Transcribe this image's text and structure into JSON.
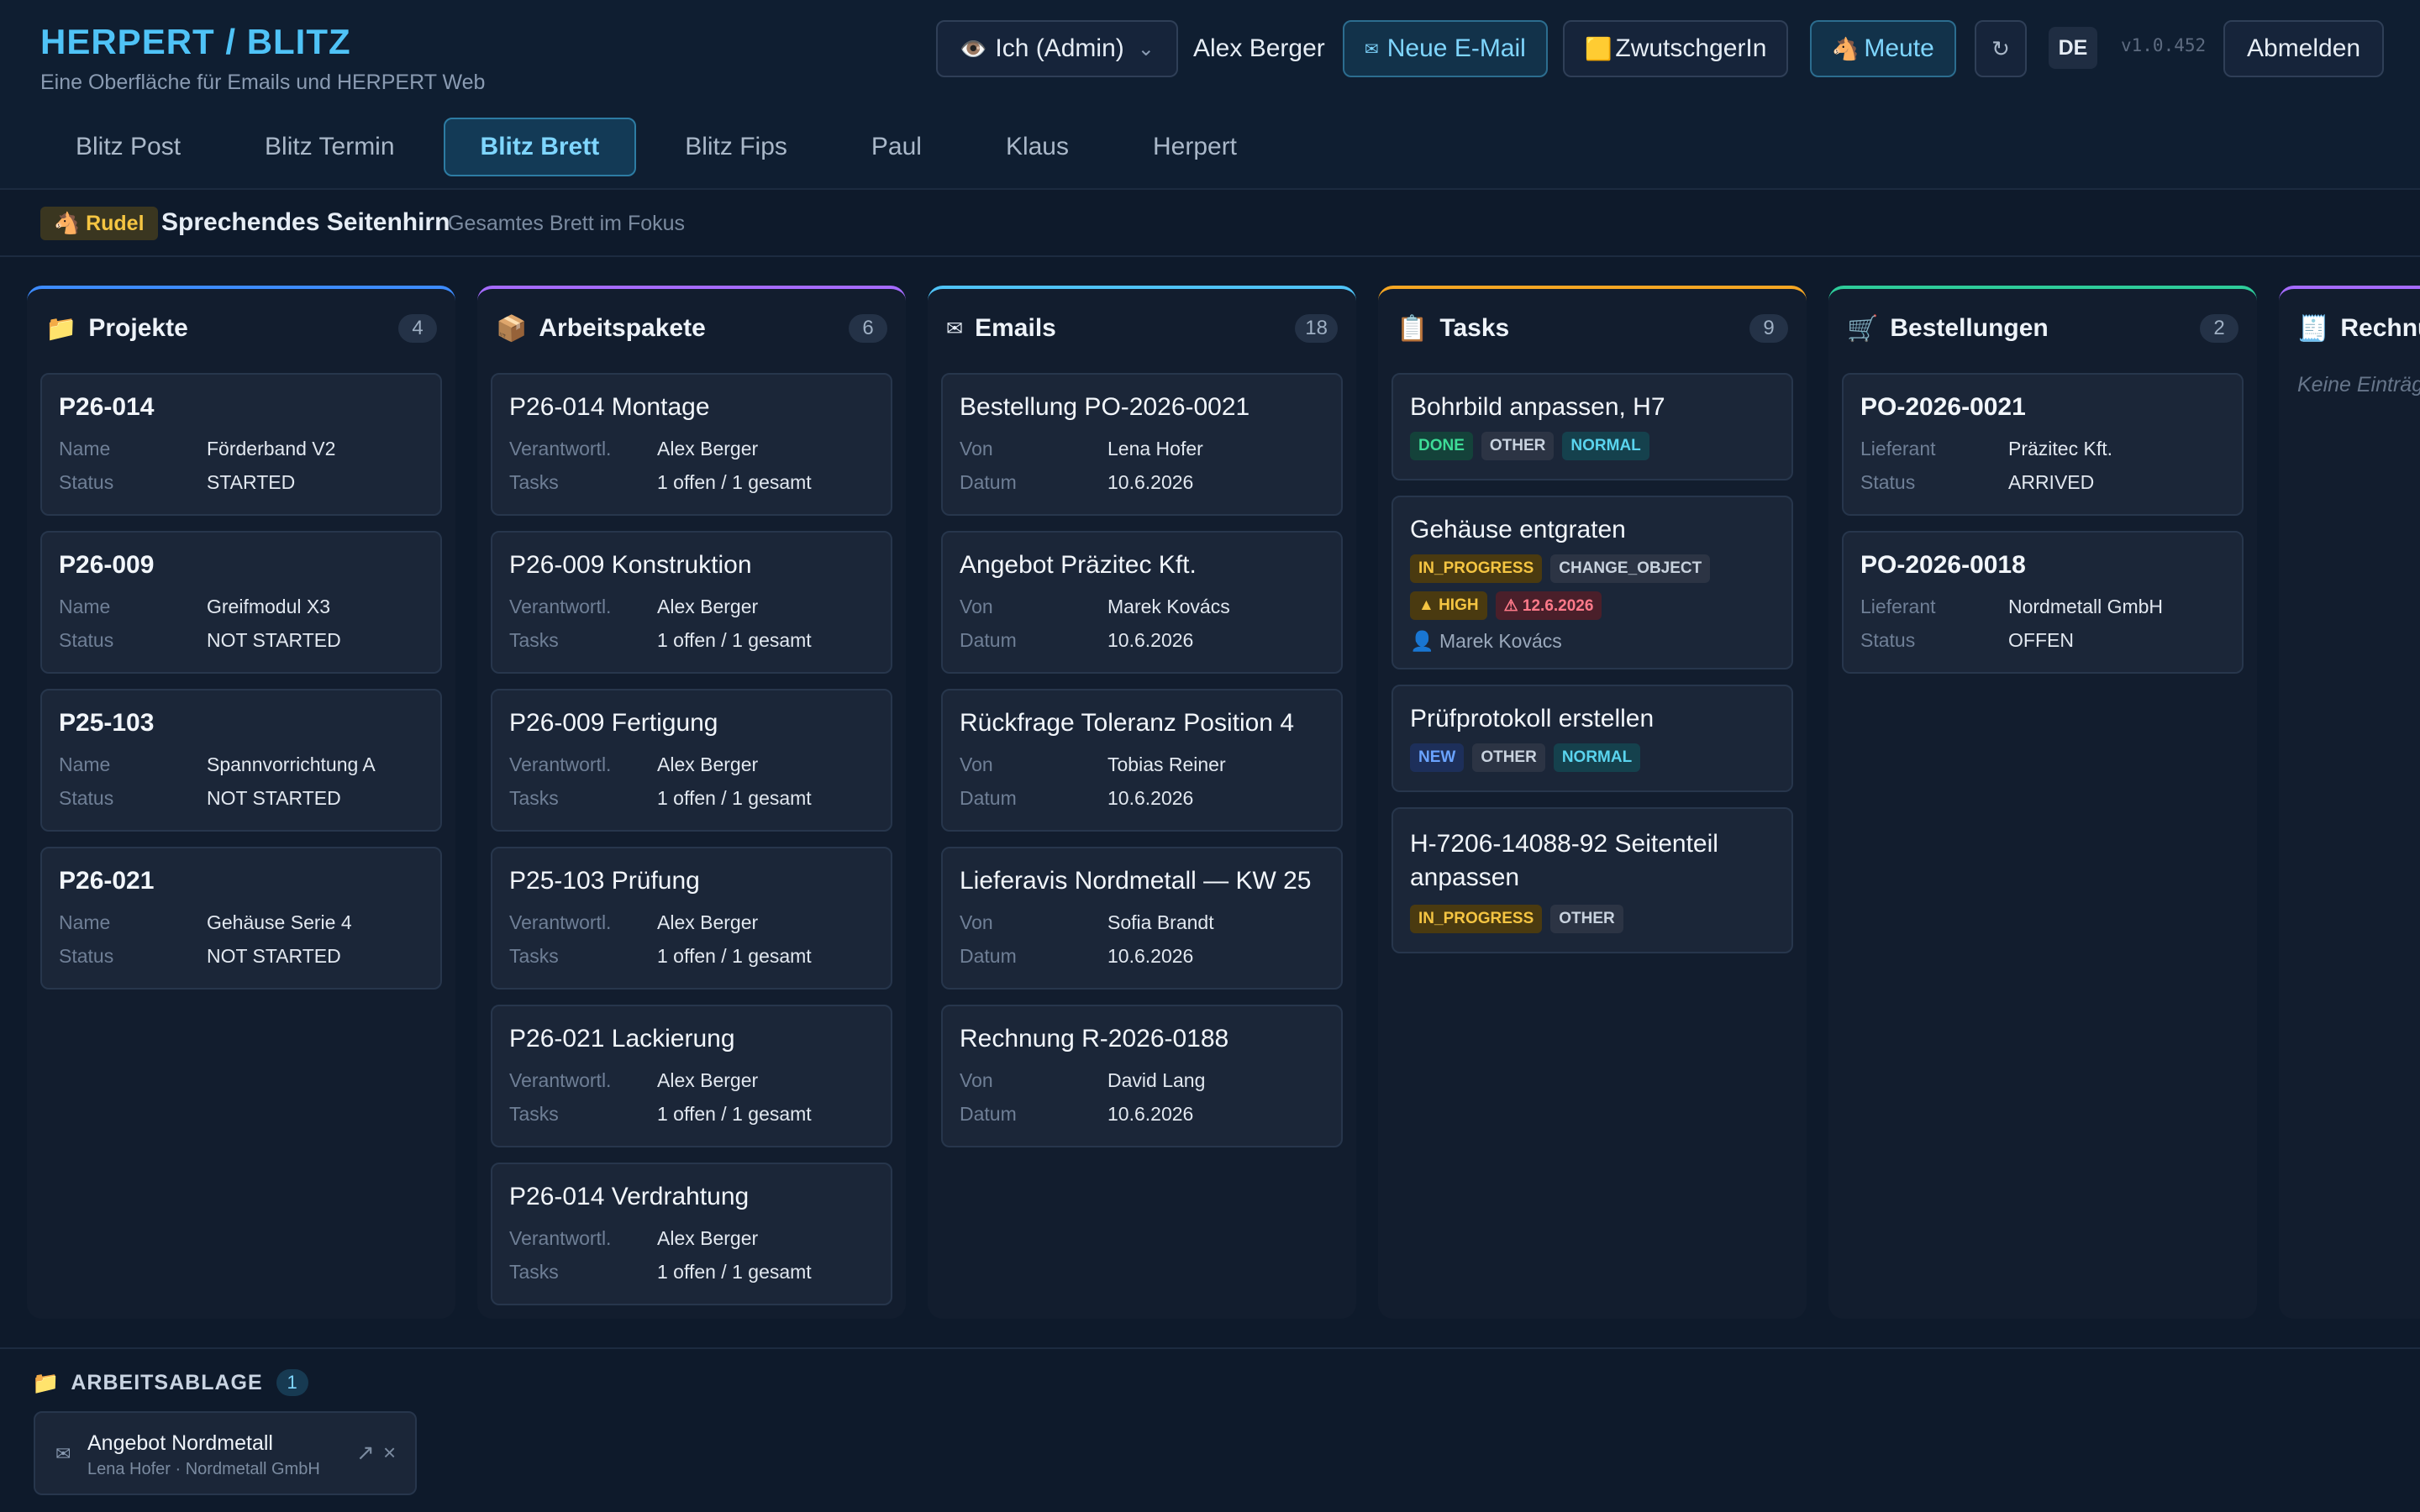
{
  "header": {
    "title": "HERPERT / BLITZ",
    "subtitle": "Eine Oberfläche für Emails und HERPERT Web",
    "role_select": {
      "icon": "eye-icon",
      "label": "Ich (Admin)",
      "chevron": "⌄"
    },
    "user_name": "Alex Berger",
    "new_email": {
      "icon": "✉",
      "label": "Neue E-Mail"
    },
    "zwutschgerin": {
      "icon": "🟨",
      "label": "ZwutschgerIn"
    },
    "meute": {
      "icon": "🐴",
      "label": "Meute"
    },
    "refresh_icon": "↻",
    "language": "DE",
    "version": "v1.0.452",
    "logout": "Abmelden"
  },
  "tabs": [
    {
      "label": "Blitz Post",
      "active": false
    },
    {
      "label": "Blitz Termin",
      "active": false
    },
    {
      "label": "Blitz Brett",
      "active": true
    },
    {
      "label": "Blitz Fips",
      "active": false
    },
    {
      "label": "Paul",
      "active": false
    },
    {
      "label": "Klaus",
      "active": false
    },
    {
      "label": "Herpert",
      "active": false
    }
  ],
  "rudel": {
    "badge": "🐴 Rudel",
    "title": "Sprechendes Seitenhirn",
    "subtitle": "Gesamtes Brett im Fokus"
  },
  "colors": {
    "projekte": "#3d8bfd",
    "arbeitspakete": "#a56bff",
    "emails": "#4fc3f7",
    "tasks": "#f5a623",
    "bestellungen": "#2ecc9a",
    "rechnungen": "#a56bff"
  },
  "columns": {
    "projekte": {
      "icon": "📁",
      "title": "Projekte",
      "count": "4",
      "cards": [
        {
          "title": "P26-014",
          "k1": "Name",
          "v1": "Förderband V2",
          "k2": "Status",
          "v2": "STARTED"
        },
        {
          "title": "P26-009",
          "k1": "Name",
          "v1": "Greifmodul X3",
          "k2": "Status",
          "v2": "NOT STARTED"
        },
        {
          "title": "P25-103",
          "k1": "Name",
          "v1": "Spannvorrichtung A",
          "k2": "Status",
          "v2": "NOT STARTED"
        },
        {
          "title": "P26-021",
          "k1": "Name",
          "v1": "Gehäuse Serie 4",
          "k2": "Status",
          "v2": "NOT STARTED"
        }
      ]
    },
    "arbeitspakete": {
      "icon": "📦",
      "title": "Arbeitspakete",
      "count": "6",
      "cards": [
        {
          "title": "P26-014 Montage",
          "k1": "Verantwortl.",
          "v1": "Alex Berger",
          "k2": "Tasks",
          "v2": "1 offen / 1 gesamt"
        },
        {
          "title": "P26-009 Konstruktion",
          "k1": "Verantwortl.",
          "v1": "Alex Berger",
          "k2": "Tasks",
          "v2": "1 offen / 1 gesamt"
        },
        {
          "title": "P26-009 Fertigung",
          "k1": "Verantwortl.",
          "v1": "Alex Berger",
          "k2": "Tasks",
          "v2": "1 offen / 1 gesamt"
        },
        {
          "title": "P25-103 Prüfung",
          "k1": "Verantwortl.",
          "v1": "Alex Berger",
          "k2": "Tasks",
          "v2": "1 offen / 1 gesamt"
        },
        {
          "title": "P26-021 Lackierung",
          "k1": "Verantwortl.",
          "v1": "Alex Berger",
          "k2": "Tasks",
          "v2": "1 offen / 1 gesamt"
        },
        {
          "title": "P26-014 Verdrahtung",
          "k1": "Verantwortl.",
          "v1": "Alex Berger",
          "k2": "Tasks",
          "v2": "1 offen / 1 gesamt"
        }
      ]
    },
    "emails": {
      "icon": "✉",
      "title": "Emails",
      "count": "18",
      "cards": [
        {
          "title": "Bestellung PO-2026-0021",
          "k1": "Von",
          "v1": "Lena Hofer",
          "k2": "Datum",
          "v2": "10.6.2026"
        },
        {
          "title": "Angebot Präzitec Kft.",
          "k1": "Von",
          "v1": "Marek Kovács",
          "k2": "Datum",
          "v2": "10.6.2026"
        },
        {
          "title": "Rückfrage Toleranz Position 4",
          "k1": "Von",
          "v1": "Tobias Reiner",
          "k2": "Datum",
          "v2": "10.6.2026"
        },
        {
          "title": "Lieferavis Nordmetall — KW 25",
          "k1": "Von",
          "v1": "Sofia Brandt",
          "k2": "Datum",
          "v2": "10.6.2026"
        },
        {
          "title": "Rechnung R-2026-0188",
          "k1": "Von",
          "v1": "David Lang",
          "k2": "Datum",
          "v2": "10.6.2026"
        }
      ]
    },
    "tasks": {
      "icon": "📋",
      "title": "Tasks",
      "count": "9",
      "cards": [
        {
          "title": "Bohrbild anpassen, H7",
          "pills": [
            "DONE",
            "OTHER",
            "NORMAL"
          ]
        },
        {
          "title": "Gehäuse entgraten",
          "pills": [
            "IN_PROGRESS",
            "CHANGE_OBJECT",
            "▲ HIGH",
            "⚠ 12.6.2026"
          ],
          "assignee": "👤 Marek Kovács"
        },
        {
          "title": "Prüfprotokoll erstellen",
          "pills": [
            "NEW",
            "OTHER",
            "NORMAL"
          ]
        },
        {
          "title": "H-7206-14088-92 Seitenteil anpassen",
          "pills": [
            "IN_PROGRESS",
            "OTHER"
          ]
        }
      ]
    },
    "bestellungen": {
      "icon": "🛒",
      "title": "Bestellungen",
      "count": "2",
      "cards": [
        {
          "title": "PO-2026-0021",
          "k1": "Lieferant",
          "v1": "Präzitec Kft.",
          "k2": "Status",
          "v2": "ARRIVED"
        },
        {
          "title": "PO-2026-0018",
          "k1": "Lieferant",
          "v1": "Nordmetall GmbH",
          "k2": "Status",
          "v2": "OFFEN"
        }
      ]
    },
    "rechnungen": {
      "icon": "🧾",
      "title": "Rechnu",
      "empty": "Keine Einträg"
    }
  },
  "ablage": {
    "icon": "📁",
    "title": "ARBEITSABLAGE",
    "count": "1",
    "item": {
      "icon": "✉",
      "name": "Angebot Nordmetall",
      "meta": "Lena Hofer · Nordmetall GmbH",
      "open_icon": "↗",
      "close_icon": "×"
    }
  }
}
